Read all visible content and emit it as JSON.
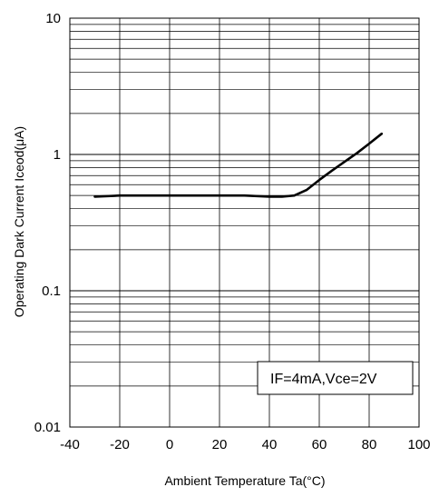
{
  "chart_data": {
    "type": "line",
    "title": "",
    "xlabel": "Ambient Temperature Ta(°C)",
    "ylabel": "Operating Dark Current Iceod(μA)",
    "xlim": [
      -40,
      100
    ],
    "ylim": [
      0.01,
      10
    ],
    "y_scale": "log",
    "grid": true,
    "x_ticks": [
      -40,
      -20,
      0,
      20,
      40,
      60,
      80,
      100
    ],
    "x_tick_labels": [
      "-40",
      "-20",
      "0",
      "20",
      "40",
      "60",
      "80",
      "100"
    ],
    "y_ticks": [
      0.01,
      0.1,
      1,
      10
    ],
    "y_tick_labels": [
      "0.01",
      "0.1",
      "1",
      "10"
    ],
    "annotation": "IF=4mA,Vce=2V",
    "series": [
      {
        "x": [
          -30,
          -20,
          0,
          20,
          30,
          40,
          45,
          50,
          55,
          60,
          65,
          70,
          75,
          80,
          85
        ],
        "y": [
          0.49,
          0.5,
          0.5,
          0.5,
          0.5,
          0.49,
          0.49,
          0.5,
          0.55,
          0.65,
          0.76,
          0.88,
          1.02,
          1.2,
          1.42
        ]
      }
    ]
  }
}
